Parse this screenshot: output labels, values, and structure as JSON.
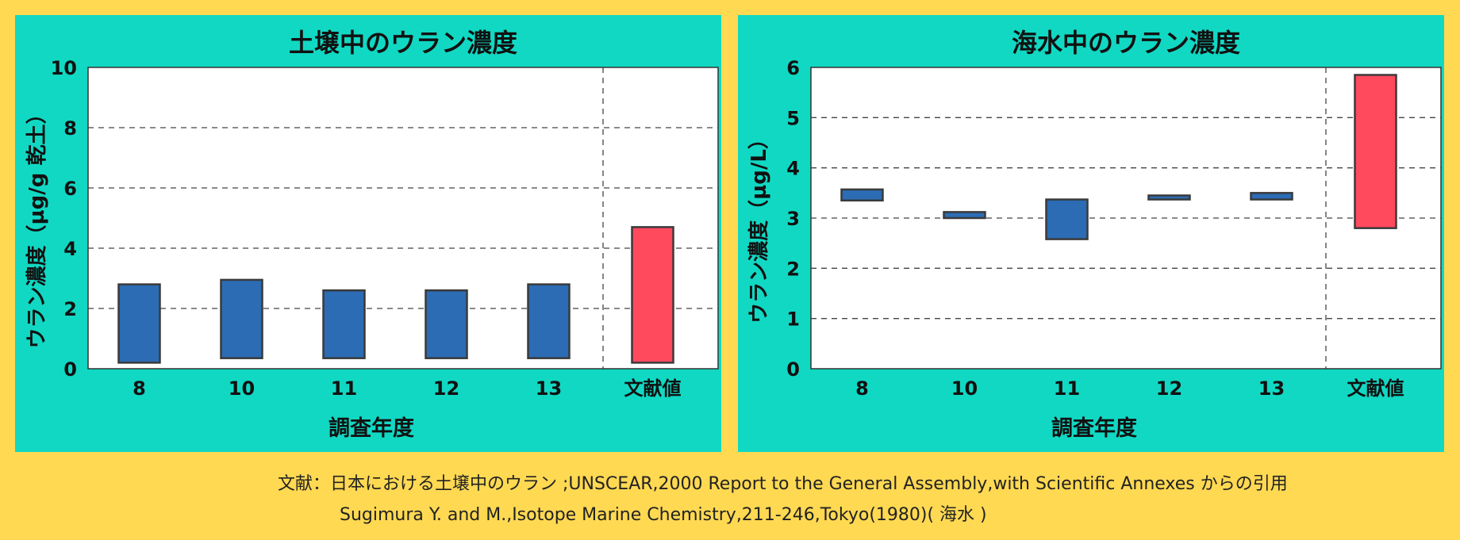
{
  "colors": {
    "background": "#FFD952",
    "panel": "#11D8C3",
    "bar_survey": "#2B6CB4",
    "bar_literature": "#FF4A5E",
    "bar_edge": "#3A3A3A"
  },
  "chart_data": [
    {
      "type": "bar",
      "subtype": "floating-range",
      "title": "土壌中のウラン濃度",
      "xlabel": "調査年度",
      "ylabel": "ウラン濃度（µg/g 乾土）",
      "ylim": [
        0,
        10
      ],
      "yticks": [
        0,
        2,
        4,
        6,
        8,
        10
      ],
      "grid": "horizontal dashed",
      "categories": [
        "8",
        "10",
        "11",
        "12",
        "13",
        "文献値"
      ],
      "ranges": [
        [
          0.2,
          2.8
        ],
        [
          0.35,
          2.95
        ],
        [
          0.35,
          2.6
        ],
        [
          0.35,
          2.6
        ],
        [
          0.35,
          2.8
        ],
        [
          0.2,
          4.7
        ]
      ],
      "highlight_index": 5
    },
    {
      "type": "bar",
      "subtype": "floating-range",
      "title": "海水中のウラン濃度",
      "xlabel": "調査年度",
      "ylabel": "ウラン濃度（µg/L）",
      "ylim": [
        0,
        6
      ],
      "yticks": [
        0,
        1,
        2,
        3,
        4,
        5,
        6
      ],
      "grid": "horizontal dashed",
      "categories": [
        "8",
        "10",
        "11",
        "12",
        "13",
        "文献値"
      ],
      "ranges": [
        [
          3.35,
          3.57
        ],
        [
          3.0,
          3.12
        ],
        [
          2.58,
          3.37
        ],
        [
          3.37,
          3.45
        ],
        [
          3.37,
          3.5
        ],
        [
          2.8,
          5.85
        ]
      ],
      "highlight_index": 5
    }
  ],
  "footer": {
    "line1": "文献：日本における土壌中のウラン ;UNSCEAR,2000 Report to the General Assembly,with Scientific Annexes からの引用",
    "line2": "Sugimura Y. and M.,Isotope Marine Chemistry,211-246,Tokyo(1980)( 海水 )"
  }
}
